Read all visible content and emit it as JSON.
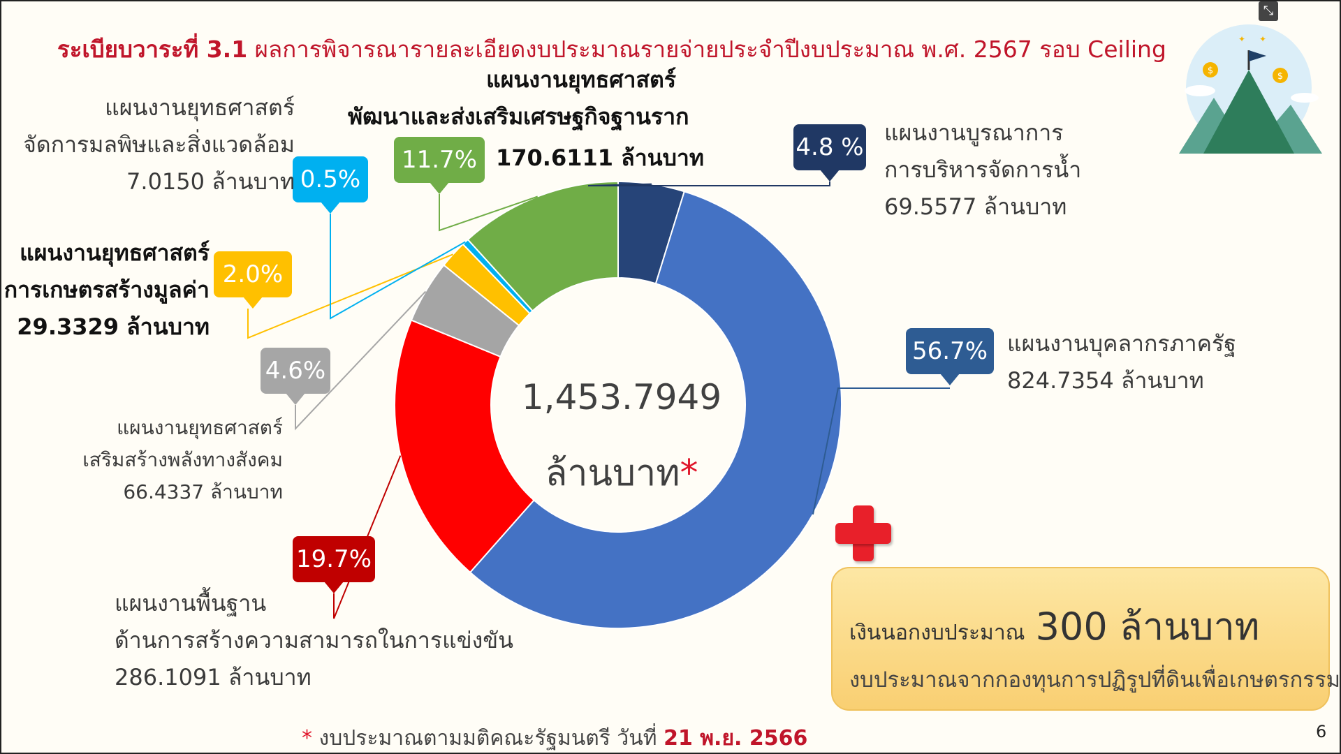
{
  "title": {
    "prefix": "ระเบียบวาระที่ 3.1",
    "text": "ผลการพิจารณารายละเอียดงบประมาณรายจ่ายประจำปีงบประมาณ พ.ศ. 2567 รอบ Ceiling"
  },
  "center": {
    "value": "1,453.7949",
    "unit": "ล้านบาท",
    "asterisk": "*"
  },
  "labels": {
    "personnel": {
      "pct": "56.7%",
      "line1": "แผนงานบุคลากรภาครัฐ",
      "line2": "824.7354 ล้านบาท"
    },
    "basic": {
      "pct": "19.7%",
      "line1": "แผนงานพื้นฐาน",
      "line2": "ด้านการสร้างความสามารถในการแข่งขัน",
      "line3": "286.1091 ล้านบาท"
    },
    "social": {
      "pct": "4.6%",
      "line1": "แผนงานยุทธศาสตร์",
      "line2": "เสริมสร้างพลังทางสังคม",
      "line3": "66.4337 ล้านบาท"
    },
    "agri": {
      "pct": "2.0%",
      "line1": "แผนงานยุทธศาสตร์",
      "line2": "การเกษตรสร้างมูลค่า",
      "line3": "29.3329 ล้านบาท"
    },
    "pollution": {
      "pct": "0.5%",
      "line1": "แผนงานยุทธศาสตร์",
      "line2": "จัดการมลพิษและสิ่งแวดล้อม",
      "line3": "7.0150 ล้านบาท"
    },
    "economy": {
      "pct": "11.7%",
      "line1": "แผนงานยุทธศาสตร์",
      "line2": "พัฒนาและส่งเสริมเศรษฐกิจฐานราก",
      "line3": "170.6111 ล้านบาท"
    },
    "water": {
      "pct": "4.8 %",
      "line1": "แผนงานบูรณาการ",
      "line2": "การบริหารจัดการน้ำ",
      "line3": "69.5577 ล้านบาท"
    }
  },
  "extra_budget": {
    "label": "เงินนอกงบประมาณ",
    "amount": "300 ล้านบาท",
    "source": "งบประมาณจากกองทุนการปฏิรูปที่ดินเพื่อเกษตรกรรม"
  },
  "footnote": {
    "asterisk": "*",
    "text": "งบประมาณตามมติคณะรัฐมนตรี วันที่",
    "date": "21 พ.ย. 2566"
  },
  "page_number": "6",
  "chart_data": {
    "type": "pie",
    "donut": true,
    "total": 1453.7949,
    "unit": "ล้านบาท",
    "series": [
      {
        "key": "water",
        "value": 69.5577,
        "percent": 4.8,
        "color": "#264478"
      },
      {
        "key": "personnel",
        "value": 824.7354,
        "percent": 56.7,
        "color": "#4472c4"
      },
      {
        "key": "basic",
        "value": 286.1091,
        "percent": 19.7,
        "color": "#ff0000"
      },
      {
        "key": "social",
        "value": 66.4337,
        "percent": 4.6,
        "color": "#a5a5a5"
      },
      {
        "key": "agri",
        "value": 29.3329,
        "percent": 2.0,
        "color": "#ffc000"
      },
      {
        "key": "pollution",
        "value": 7.015,
        "percent": 0.5,
        "color": "#00b0f0"
      },
      {
        "key": "economy",
        "value": 170.6111,
        "percent": 11.7,
        "color": "#70ad47"
      }
    ],
    "start_angle": "12 o'clock, clockwise order: water, personnel, basic, social, agri, pollution, economy"
  },
  "colors": {
    "title_red": "#c0152a",
    "badge_personnel": "#2e5c93",
    "badge_basic": "#c00000",
    "badge_social": "#a6a6a6",
    "badge_agri": "#ffc000",
    "badge_pollution": "#00b0f0",
    "badge_economy": "#70ad47",
    "badge_water": "#203864"
  }
}
